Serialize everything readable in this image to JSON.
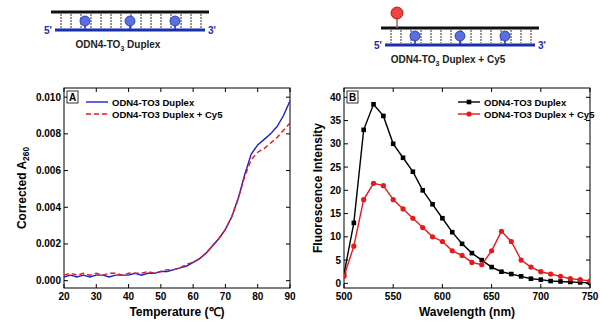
{
  "diagrams": [
    {
      "label": {
        "base": "ODN4-TO",
        "sub": "3",
        "tail": " Duplex"
      },
      "five_prime": "5'",
      "three_prime": "3'",
      "probe": false
    },
    {
      "label": {
        "base": "ODN4-TO",
        "sub": "3",
        "tail": " Duplex + Cy5"
      },
      "five_prime": "5'",
      "three_prime": "3'",
      "probe": true
    }
  ],
  "chart_data": [
    {
      "type": "line",
      "panel_label": "A",
      "x_label": "Temperature (℃)",
      "y_label": {
        "base": "Corrected A",
        "sub": "260"
      },
      "xlim": [
        20,
        90
      ],
      "xticks": [
        20,
        30,
        40,
        50,
        60,
        70,
        80,
        90
      ],
      "ylim": [
        -0.0004,
        0.0105
      ],
      "yticks": [
        {
          "value": 0,
          "label": "0.000"
        },
        {
          "value": 0.002,
          "label": "0.002"
        },
        {
          "value": 0.004,
          "label": "0.004"
        },
        {
          "value": 0.006,
          "label": "0.006"
        },
        {
          "value": 0.008,
          "label": "0.008"
        },
        {
          "value": 0.01,
          "label": "0.010"
        }
      ],
      "legend": "upper left",
      "x": [
        20,
        22,
        24,
        26,
        28,
        30,
        32,
        34,
        36,
        38,
        40,
        42,
        44,
        46,
        48,
        50,
        52,
        54,
        56,
        58,
        60,
        62,
        64,
        66,
        68,
        70,
        72,
        74,
        76,
        78,
        80,
        82,
        84,
        86,
        88,
        90
      ],
      "series": [
        {
          "name": "ODN4-TO3 Duplex",
          "color": "#1f1fd0",
          "line_style": "solid",
          "values": [
            0.0002,
            0.0003,
            0.0002,
            0.0003,
            0.0002,
            0.0003,
            0.0003,
            0.0002,
            0.0003,
            0.0003,
            0.0003,
            0.0004,
            0.0003,
            0.0004,
            0.0004,
            0.0005,
            0.0005,
            0.0006,
            0.0007,
            0.0008,
            0.001,
            0.0012,
            0.0015,
            0.0019,
            0.0023,
            0.0028,
            0.0035,
            0.0045,
            0.0058,
            0.0069,
            0.0074,
            0.0077,
            0.008,
            0.0084,
            0.009,
            0.0098
          ]
        },
        {
          "name": "ODN4-TO3 Duplex + Cy5",
          "color": "#e8191b",
          "line_style": "dashed",
          "values": [
            0.0003,
            0.0004,
            0.0003,
            0.0004,
            0.0003,
            0.0004,
            0.0003,
            0.0004,
            0.0004,
            0.0003,
            0.0004,
            0.0004,
            0.0004,
            0.0005,
            0.0004,
            0.0005,
            0.0006,
            0.0006,
            0.0007,
            0.0009,
            0.001,
            0.0012,
            0.0015,
            0.0019,
            0.0023,
            0.0028,
            0.0035,
            0.0045,
            0.0057,
            0.0066,
            0.007,
            0.0072,
            0.0075,
            0.0078,
            0.0082,
            0.0086
          ]
        }
      ]
    },
    {
      "type": "line",
      "panel_label": "B",
      "x_label": "Wavelength (nm)",
      "y_label": "Fluorescence Intensity",
      "xlim": [
        500,
        750
      ],
      "xticks": [
        500,
        550,
        600,
        650,
        700,
        750
      ],
      "ylim": [
        -1,
        42
      ],
      "yticks": [
        0,
        5,
        10,
        15,
        20,
        25,
        30,
        35,
        40
      ],
      "legend": "upper right",
      "x": [
        500,
        510,
        520,
        530,
        540,
        550,
        560,
        570,
        580,
        590,
        600,
        610,
        620,
        630,
        640,
        650,
        660,
        670,
        680,
        690,
        700,
        710,
        720,
        730,
        740,
        750
      ],
      "series": [
        {
          "name": "ODN4-TO3 Duplex",
          "color": "#000000",
          "marker": "square",
          "line_style": "solid",
          "values": [
            2,
            13,
            33,
            38.5,
            36,
            30,
            27,
            24,
            20,
            17,
            14,
            11,
            8.5,
            6.5,
            5,
            3.5,
            2.5,
            2,
            1.5,
            1,
            0.8,
            0.5,
            0.4,
            0.3,
            0.2,
            0.1
          ]
        },
        {
          "name": "ODN4-TO3 Duplex + Cy5",
          "color": "#e8191b",
          "marker": "circle",
          "line_style": "solid",
          "values": [
            1.5,
            8,
            18,
            21.5,
            21,
            18,
            16,
            14,
            12,
            10,
            9,
            7,
            6,
            4.5,
            4,
            7,
            11.2,
            9,
            5,
            3.5,
            2.5,
            2,
            1.5,
            1,
            0.8,
            0.5
          ]
        }
      ]
    }
  ]
}
